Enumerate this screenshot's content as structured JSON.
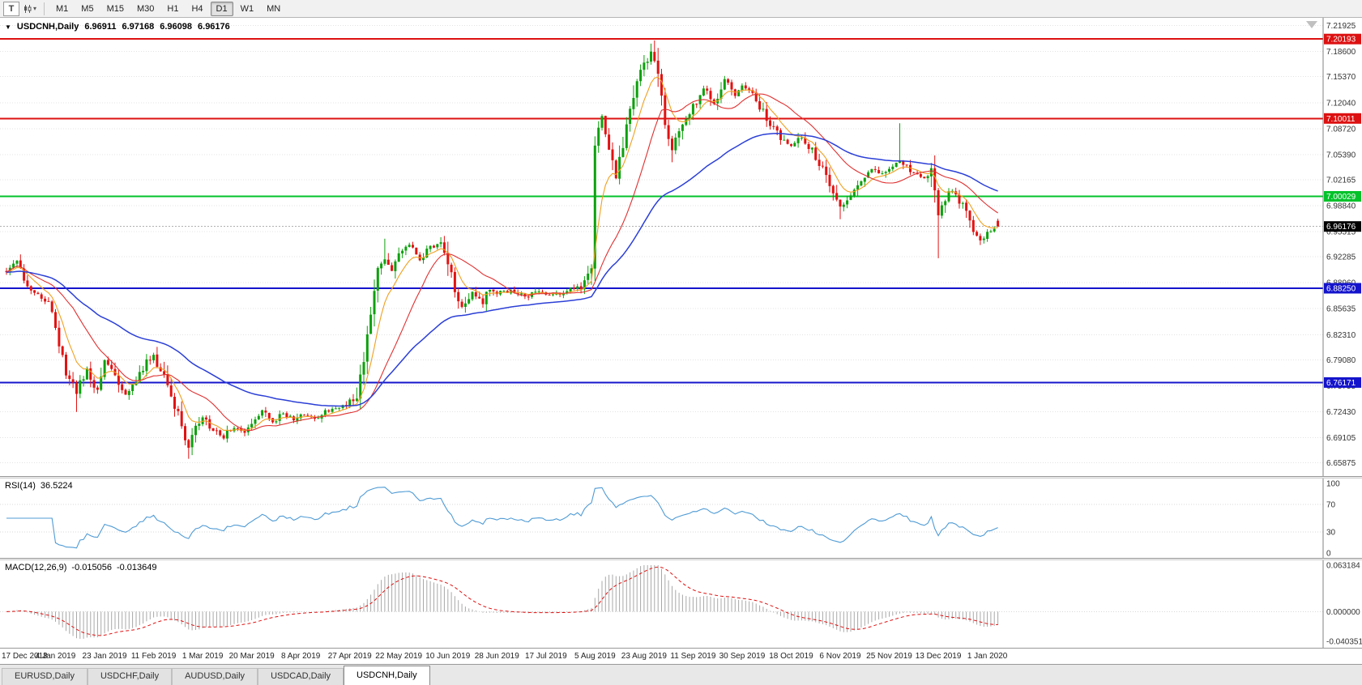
{
  "toolbar": {
    "timeframes": [
      "M1",
      "M5",
      "M15",
      "M30",
      "H1",
      "H4",
      "D1",
      "W1",
      "MN"
    ],
    "active_timeframe": "D1"
  },
  "icons": {
    "text_tool": "T",
    "dropdown_caret": "▾",
    "collapse_triangle": "▼"
  },
  "chart": {
    "title": "USDCNH,Daily",
    "open": "6.96911",
    "high": "6.97168",
    "low": "6.96098",
    "close": "6.96176"
  },
  "price_axis": {
    "labels": [
      "7.21925",
      "7.18600",
      "7.15370",
      "7.12040",
      "7.08720",
      "7.05390",
      "7.02165",
      "6.98840",
      "6.95515",
      "6.92285",
      "6.88960",
      "6.85635",
      "6.82310",
      "6.79080",
      "6.75755",
      "6.72430",
      "6.69105",
      "6.65875"
    ],
    "scale_max": 7.225,
    "scale_min": 6.648
  },
  "hlines": [
    {
      "value": 7.20193,
      "label": "7.20193",
      "color": "#dd1111"
    },
    {
      "value": 7.10011,
      "label": "7.10011",
      "color": "#dd1111"
    },
    {
      "value": 7.00029,
      "label": "7.00029",
      "color": "#00c22a"
    },
    {
      "value": 6.8825,
      "label": "6.88250",
      "color": "#1414cc"
    },
    {
      "value": 6.76171,
      "label": "6.76171",
      "color": "#1414cc"
    }
  ],
  "current_price": {
    "value": "6.96176",
    "label": "6.96176"
  },
  "x_axis": {
    "bars_per_label": 14,
    "labels": [
      "17 Dec 2018",
      "4 Jan 2019",
      "23 Jan 2019",
      "11 Feb 2019",
      "1 Mar 2019",
      "20 Mar 2019",
      "8 Apr 2019",
      "27 Apr 2019",
      "22 May 2019",
      "10 Jun 2019",
      "28 Jun 2019",
      "17 Jul 2019",
      "5 Aug 2019",
      "23 Aug 2019",
      "11 Sep 2019",
      "30 Sep 2019",
      "18 Oct 2019",
      "6 Nov 2019",
      "25 Nov 2019",
      "13 Dec 2019",
      "1 Jan 2020"
    ]
  },
  "chart_data": {
    "type": "candlestick",
    "symbol": "USDCNH",
    "period": "Daily",
    "bars": 284,
    "up_color": "#0da00d",
    "down_color": "#e21212",
    "anchors": [
      [
        0,
        6.905
      ],
      [
        3,
        6.918
      ],
      [
        6,
        6.886
      ],
      [
        10,
        6.872
      ],
      [
        13,
        6.858
      ],
      [
        15,
        6.815
      ],
      [
        17,
        6.775
      ],
      [
        20,
        6.748
      ],
      [
        23,
        6.778
      ],
      [
        26,
        6.752
      ],
      [
        28,
        6.788
      ],
      [
        31,
        6.772
      ],
      [
        34,
        6.744
      ],
      [
        37,
        6.764
      ],
      [
        40,
        6.788
      ],
      [
        42,
        6.796
      ],
      [
        45,
        6.77
      ],
      [
        48,
        6.732
      ],
      [
        50,
        6.7
      ],
      [
        52,
        6.678
      ],
      [
        54,
        6.702
      ],
      [
        56,
        6.716
      ],
      [
        59,
        6.7
      ],
      [
        62,
        6.692
      ],
      [
        65,
        6.706
      ],
      [
        68,
        6.7
      ],
      [
        70,
        6.712
      ],
      [
        73,
        6.726
      ],
      [
        76,
        6.712
      ],
      [
        79,
        6.722
      ],
      [
        82,
        6.714
      ],
      [
        84,
        6.72
      ],
      [
        88,
        6.716
      ],
      [
        92,
        6.726
      ],
      [
        96,
        6.73
      ],
      [
        98,
        6.737
      ],
      [
        100,
        6.748
      ],
      [
        102,
        6.792
      ],
      [
        104,
        6.858
      ],
      [
        106,
        6.902
      ],
      [
        108,
        6.922
      ],
      [
        110,
        6.906
      ],
      [
        112,
        6.926
      ],
      [
        115,
        6.936
      ],
      [
        118,
        6.918
      ],
      [
        121,
        6.934
      ],
      [
        124,
        6.94
      ],
      [
        126,
        6.92
      ],
      [
        128,
        6.878
      ],
      [
        130,
        6.856
      ],
      [
        133,
        6.876
      ],
      [
        136,
        6.862
      ],
      [
        138,
        6.882
      ],
      [
        140,
        6.876
      ],
      [
        144,
        6.88
      ],
      [
        148,
        6.872
      ],
      [
        152,
        6.878
      ],
      [
        156,
        6.874
      ],
      [
        160,
        6.88
      ],
      [
        164,
        6.884
      ],
      [
        166,
        6.896
      ],
      [
        167,
        6.908
      ],
      [
        168,
        7.062
      ],
      [
        170,
        7.102
      ],
      [
        172,
        7.058
      ],
      [
        174,
        7.026
      ],
      [
        176,
        7.072
      ],
      [
        178,
        7.112
      ],
      [
        180,
        7.152
      ],
      [
        182,
        7.168
      ],
      [
        184,
        7.183
      ],
      [
        186,
        7.148
      ],
      [
        188,
        7.096
      ],
      [
        190,
        7.058
      ],
      [
        193,
        7.098
      ],
      [
        196,
        7.114
      ],
      [
        199,
        7.138
      ],
      [
        202,
        7.118
      ],
      [
        205,
        7.148
      ],
      [
        208,
        7.128
      ],
      [
        210,
        7.142
      ],
      [
        213,
        7.132
      ],
      [
        216,
        7.108
      ],
      [
        219,
        7.086
      ],
      [
        222,
        7.072
      ],
      [
        224,
        7.064
      ],
      [
        227,
        7.076
      ],
      [
        230,
        7.058
      ],
      [
        233,
        7.034
      ],
      [
        236,
        7.008
      ],
      [
        238,
        6.988
      ],
      [
        241,
        7.006
      ],
      [
        244,
        7.024
      ],
      [
        247,
        7.036
      ],
      [
        250,
        7.03
      ],
      [
        252,
        7.036
      ],
      [
        254,
        7.044
      ],
      [
        256,
        7.042
      ],
      [
        259,
        7.028
      ],
      [
        262,
        7.026
      ],
      [
        264,
        7.032
      ],
      [
        266,
        6.976
      ],
      [
        268,
        6.998
      ],
      [
        270,
        7.008
      ],
      [
        272,
        6.996
      ],
      [
        274,
        6.982
      ],
      [
        276,
        6.96
      ],
      [
        278,
        6.946
      ],
      [
        280,
        6.954
      ],
      [
        283,
        6.962
      ]
    ],
    "specials": [
      {
        "i": 20,
        "low": 6.724
      },
      {
        "i": 52,
        "low": 6.664
      },
      {
        "i": 108,
        "high": 6.946
      },
      {
        "i": 124,
        "high": 6.948
      },
      {
        "i": 168,
        "low": 6.92
      },
      {
        "i": 184,
        "high": 7.196
      },
      {
        "i": 190,
        "low": 7.044
      },
      {
        "i": 238,
        "low": 6.971
      },
      {
        "i": 255,
        "high": 7.094
      },
      {
        "i": 266,
        "low": 6.921
      },
      {
        "i": 278,
        "low": 6.938
      }
    ],
    "last_ohlc": [
      6.96911,
      6.97168,
      6.96098,
      6.96176
    ],
    "ma": [
      {
        "type": "ema",
        "period": 8,
        "color": "#f0a020",
        "width": 1.1
      },
      {
        "type": "sma",
        "period": 20,
        "color": "#e03030",
        "width": 1.1
      },
      {
        "type": "ema",
        "period": 55,
        "color": "#2b3fd6",
        "width": 1.5
      }
    ]
  },
  "rsi": {
    "name": "RSI(14)",
    "value": "36.5224",
    "period": 14,
    "color": "#4f9bd5",
    "levels": [
      70,
      30
    ],
    "axis": [
      {
        "label": "100",
        "value": 100
      },
      {
        "label": "70",
        "value": 70
      },
      {
        "label": "30",
        "value": 30
      },
      {
        "label": "0",
        "value": 0
      }
    ],
    "max": 100,
    "min": 0
  },
  "macd": {
    "name": "MACD(12,26,9)",
    "macd_value": "-0.015056",
    "signal_value": "-0.013649",
    "fast": 12,
    "slow": 26,
    "signal": 9,
    "hist_color": "#a8a8a8",
    "signal_color": "#e01010",
    "axis": [
      {
        "label": "0.063184",
        "value": 0.063184
      },
      {
        "label": "0.000000",
        "value": 0
      },
      {
        "label": "-0.040351",
        "value": -0.040351
      }
    ],
    "max": 0.063184,
    "min": -0.040351
  },
  "tabs": {
    "items": [
      "EURUSD,Daily",
      "USDCHF,Daily",
      "AUDUSD,Daily",
      "USDCAD,Daily",
      "USDCNH,Daily"
    ],
    "active": "USDCNH,Daily"
  },
  "colors": {
    "grid": "#e3e3e3",
    "background": "#ffffff",
    "axis_text": "#333333"
  }
}
